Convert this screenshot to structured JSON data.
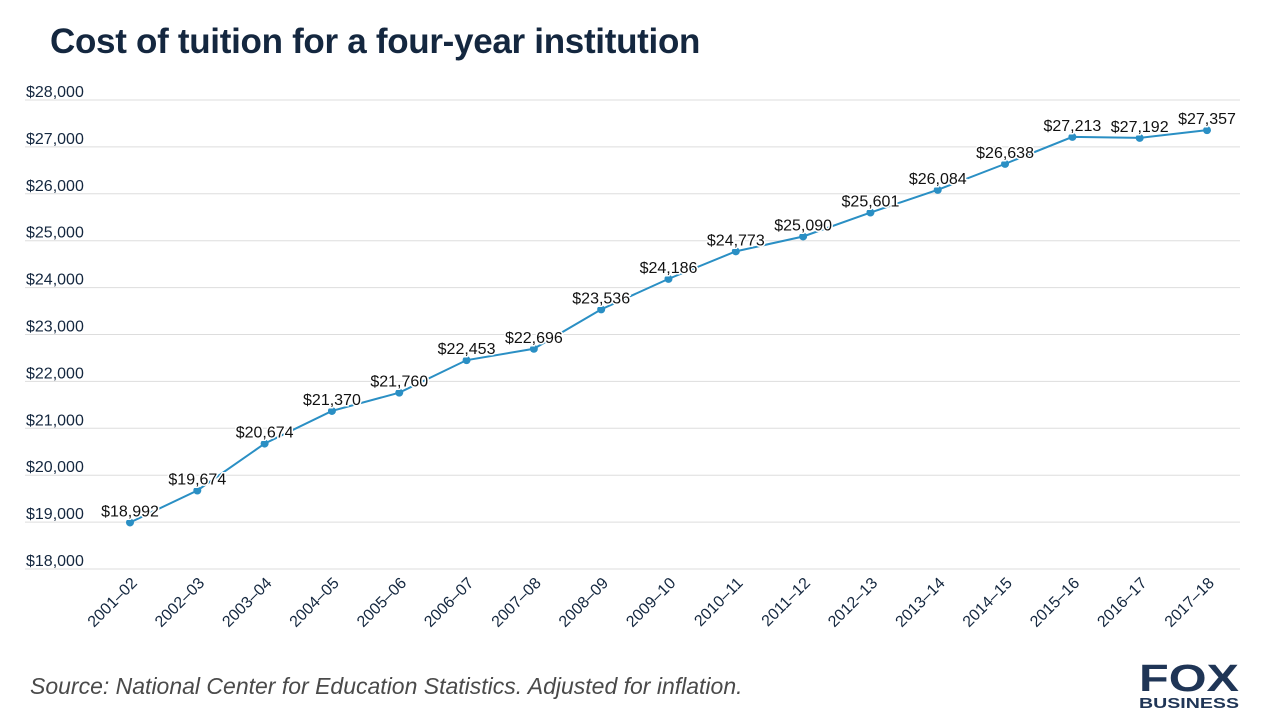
{
  "title": "Cost of tuition for a four-year institution",
  "source": "Source: National Center for Education Statistics. Adjusted for inflation.",
  "logo": {
    "top": "FOX",
    "bottom": "BUSINESS"
  },
  "colors": {
    "line": "#2a8fc4",
    "title": "#14273f",
    "grid": "#dddddd",
    "logo": "#1f3556"
  },
  "chart_data": {
    "type": "line",
    "title": "Cost of tuition for a four-year institution",
    "xlabel": "",
    "ylabel": "",
    "ylim": [
      18000,
      28000
    ],
    "yticks": [
      18000,
      19000,
      20000,
      21000,
      22000,
      23000,
      24000,
      25000,
      26000,
      27000,
      28000
    ],
    "ytick_labels": [
      "$18,000",
      "$19,000",
      "$20,000",
      "$21,000",
      "$22,000",
      "$23,000",
      "$24,000",
      "$25,000",
      "$26,000",
      "$27,000",
      "$28,000"
    ],
    "grid": true,
    "legend": false,
    "categories": [
      "2001–02",
      "2002–03",
      "2003–04",
      "2004–05",
      "2005–06",
      "2006–07",
      "2007–08",
      "2008–09",
      "2009–10",
      "2010–11",
      "2011–12",
      "2012–13",
      "2013–14",
      "2014–15",
      "2015–16",
      "2016–17",
      "2017–18"
    ],
    "values": [
      18992,
      19674,
      20674,
      21370,
      21760,
      22453,
      22696,
      23536,
      24186,
      24773,
      25090,
      25601,
      26084,
      26638,
      27213,
      27192,
      27357
    ],
    "data_labels": [
      "$18,992",
      "$19,674",
      "$20,674",
      "$21,370",
      "$21,760",
      "$22,453",
      "$22,696",
      "$23,536",
      "$24,186",
      "$24,773",
      "$25,090",
      "$25,601",
      "$26,084",
      "$26,638",
      "$27,213",
      "$27,192",
      "$27,357"
    ]
  }
}
